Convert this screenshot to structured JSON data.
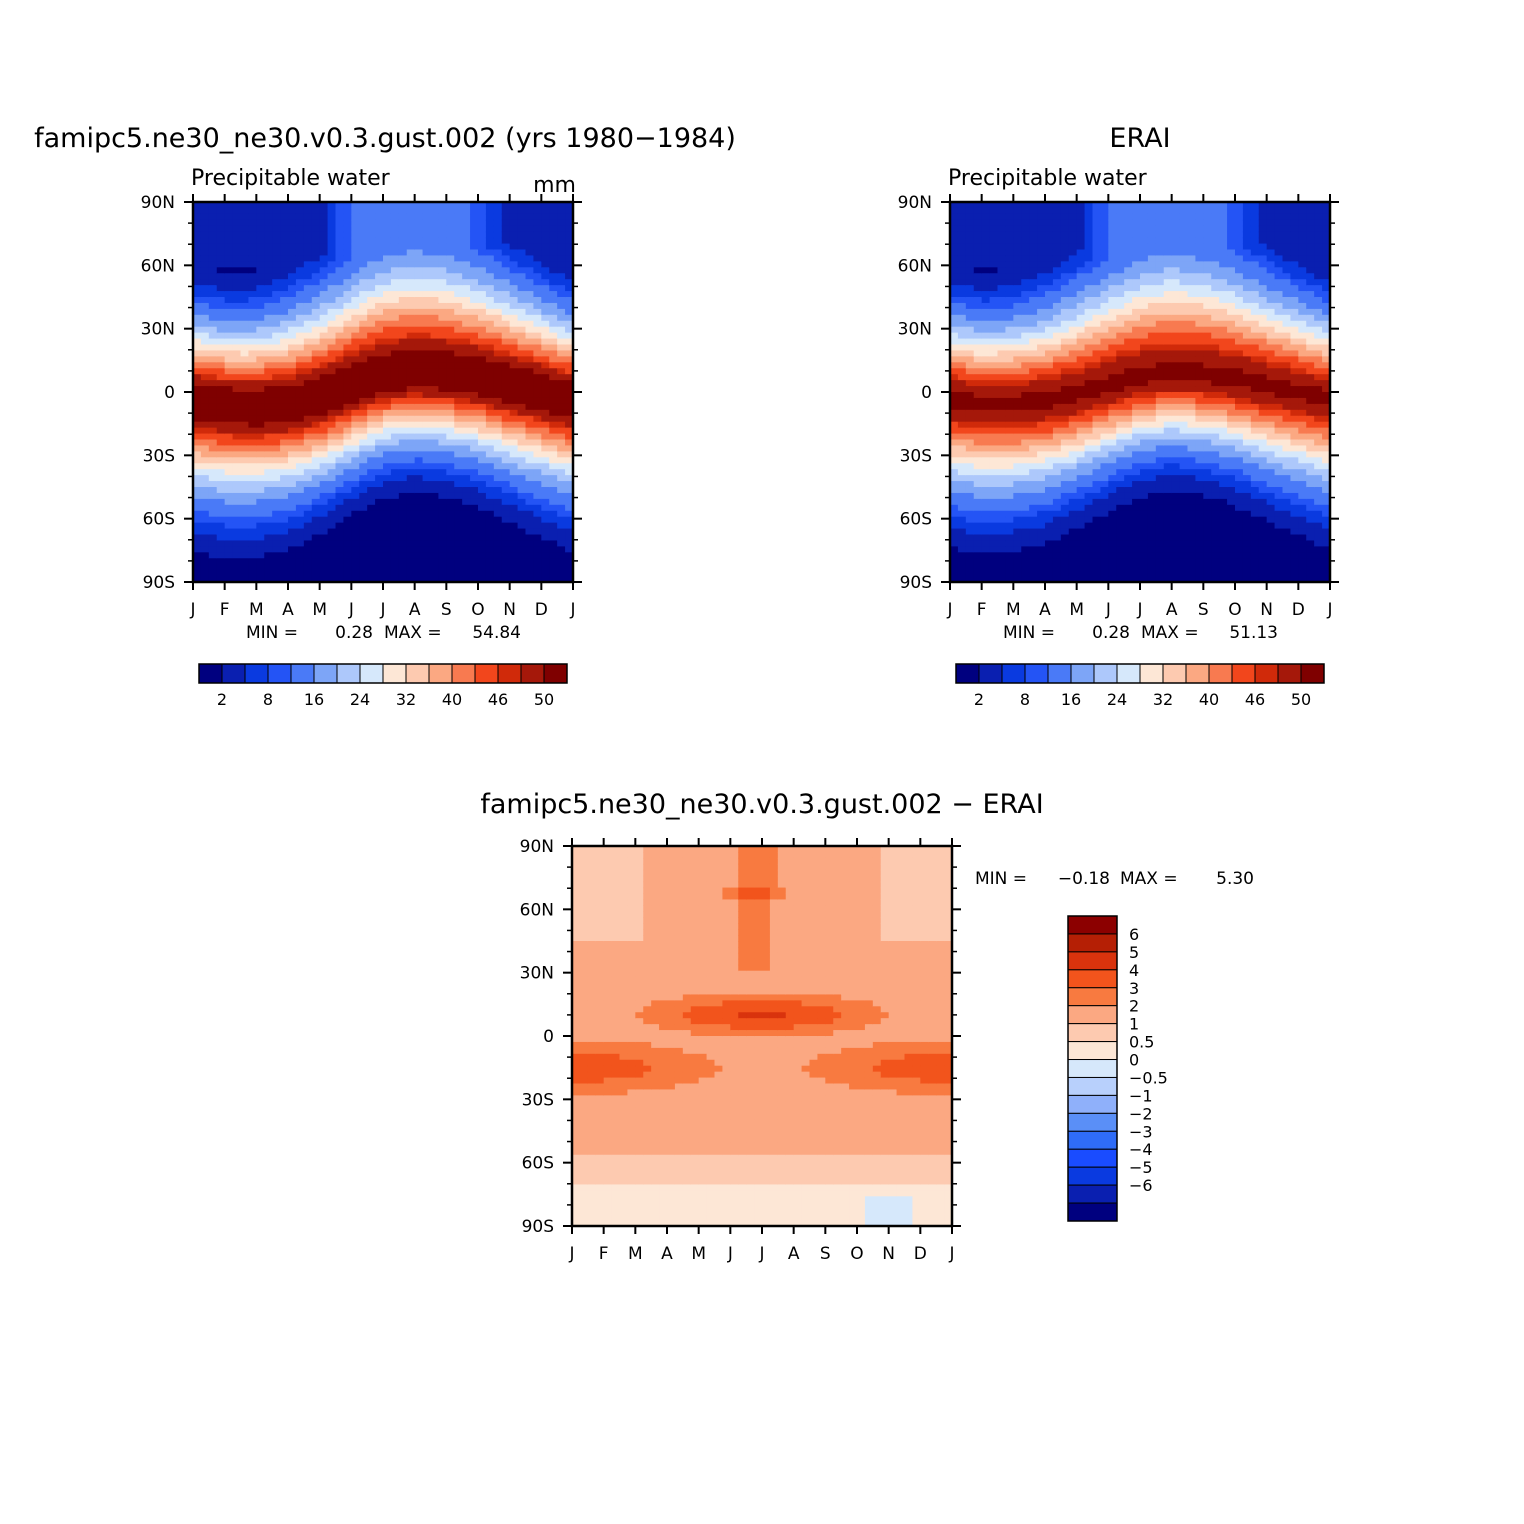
{
  "chart_data": [
    {
      "type": "heatmap",
      "id": "model",
      "title": "famipc5.ne30_ne30.v0.3.gust.002 (yrs 1980−1984)",
      "subtitle": "Precipitable water",
      "units": "mm",
      "x_ticks": [
        "J",
        "F",
        "M",
        "A",
        "M",
        "J",
        "J",
        "A",
        "S",
        "O",
        "N",
        "D",
        "J"
      ],
      "y_ticks": [
        "90N",
        "60N",
        "30N",
        "0",
        "30S",
        "60S",
        "90S"
      ],
      "lat_range": [
        -90,
        90
      ],
      "min_label": "MIN =",
      "min_value": "0.28",
      "max_label": "MAX =",
      "max_value": "54.84",
      "peak": 54.84,
      "itcz_lat": [
        -4,
        -6,
        -7,
        -6,
        -3,
        2,
        7,
        9,
        8,
        6,
        3,
        0,
        -4
      ],
      "colorbar": {
        "colors": [
          "#00007f",
          "#0a1fb0",
          "#0a3ae0",
          "#2454f5",
          "#4a7af7",
          "#7da5f7",
          "#adc8fb",
          "#d6e8fb",
          "#fde7d6",
          "#fdcab0",
          "#fba882",
          "#f87a50",
          "#f2461c",
          "#d02a0a",
          "#a5180a",
          "#7f0000"
        ],
        "labels": [
          "2",
          "8",
          "16",
          "24",
          "32",
          "40",
          "46",
          "50"
        ]
      }
    },
    {
      "type": "heatmap",
      "id": "obs",
      "title": "ERAI",
      "subtitle": "Precipitable water",
      "x_ticks": [
        "J",
        "F",
        "M",
        "A",
        "M",
        "J",
        "J",
        "A",
        "S",
        "O",
        "N",
        "D",
        "J"
      ],
      "y_ticks": [
        "90N",
        "60N",
        "30N",
        "0",
        "30S",
        "60S",
        "90S"
      ],
      "lat_range": [
        -90,
        90
      ],
      "min_label": "MIN =",
      "min_value": "0.28",
      "max_label": "MAX =",
      "max_value": "51.13",
      "peak": 51.13,
      "itcz_lat": [
        -3,
        -5,
        -5,
        -4,
        -1,
        3,
        7,
        9,
        8,
        6,
        3,
        0,
        -3
      ],
      "colorbar": {
        "colors": [
          "#00007f",
          "#0a1fb0",
          "#0a3ae0",
          "#2454f5",
          "#4a7af7",
          "#7da5f7",
          "#adc8fb",
          "#d6e8fb",
          "#fde7d6",
          "#fdcab0",
          "#fba882",
          "#f87a50",
          "#f2461c",
          "#d02a0a",
          "#a5180a",
          "#7f0000"
        ],
        "labels": [
          "2",
          "8",
          "16",
          "24",
          "32",
          "40",
          "46",
          "50"
        ]
      }
    },
    {
      "type": "heatmap",
      "id": "diff",
      "title": "famipc5.ne30_ne30.v0.3.gust.002 − ERAI",
      "x_ticks": [
        "J",
        "F",
        "M",
        "A",
        "M",
        "J",
        "J",
        "A",
        "S",
        "O",
        "N",
        "D",
        "J"
      ],
      "y_ticks": [
        "90N",
        "60N",
        "30N",
        "0",
        "30S",
        "60S",
        "90S"
      ],
      "lat_range": [
        -90,
        90
      ],
      "min_label": "MIN =",
      "min_value": "−0.18",
      "max_label": "MAX =",
      "max_value": "5.30",
      "colorbar": {
        "colors": [
          "#00007f",
          "#0a1fb0",
          "#0a3ae0",
          "#1a4cff",
          "#2f6cf7",
          "#5a8ff7",
          "#8fb0fa",
          "#b8d0fc",
          "#d6e8fb",
          "#fde7d6",
          "#fdcab0",
          "#fba882",
          "#f87a40",
          "#f2541c",
          "#d9330d",
          "#b51f05",
          "#8c0000"
        ],
        "labels": [
          "6",
          "5",
          "4",
          "3",
          "2",
          "1",
          "0.5",
          "0",
          "−0.5",
          "−1",
          "−2",
          "−3",
          "−4",
          "−5",
          "−6"
        ]
      }
    }
  ]
}
